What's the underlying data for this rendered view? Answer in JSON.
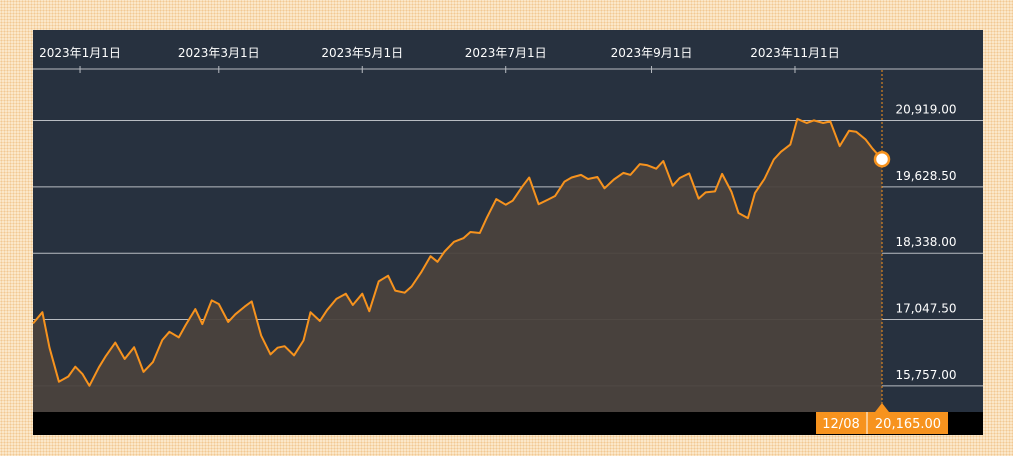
{
  "colors": {
    "background": "#fbe7c9",
    "panel": "#27313f",
    "line": "#f7931e",
    "area": "#4a423d",
    "grid": "#b8bcc2",
    "axis_text": "#ffffff",
    "bottom_bar": "#000000",
    "tag": "#f7931e"
  },
  "chart_data": {
    "type": "area",
    "x_ticks": [
      "2023年1月1日",
      "2023年3月1日",
      "2023年5月1日",
      "2023年7月1日",
      "2023年9月1日",
      "2023年11月1日"
    ],
    "y_ticks": [
      "20,919.00",
      "19,628.50",
      "18,338.00",
      "17,047.50",
      "15,757.00"
    ],
    "y_tick_values": [
      20919.0,
      19628.5,
      18338.0,
      17047.5,
      15757.0
    ],
    "x_range": [
      "2022-12-12",
      "2023-12-08"
    ],
    "ylim": [
      15250,
      21900
    ],
    "grid": "horizontal",
    "last_point": {
      "date_label": "12/08",
      "value_label": "20,165.00",
      "value": 20165.0
    },
    "series": [
      {
        "x": [
          "2022-12-12",
          "2022-12-16",
          "2022-12-19",
          "2022-12-23",
          "2022-12-27",
          "2022-12-30",
          "2023-01-02",
          "2023-01-05",
          "2023-01-09",
          "2023-01-12",
          "2023-01-16",
          "2023-01-20",
          "2023-01-24",
          "2023-01-28",
          "2023-02-01",
          "2023-02-05",
          "2023-02-08",
          "2023-02-12",
          "2023-02-15",
          "2023-02-19",
          "2023-02-22",
          "2023-02-26",
          "2023-03-01",
          "2023-03-05",
          "2023-03-08",
          "2023-03-12",
          "2023-03-15",
          "2023-03-19",
          "2023-03-23",
          "2023-03-26",
          "2023-03-29",
          "2023-04-02",
          "2023-04-06",
          "2023-04-09",
          "2023-04-13",
          "2023-04-16",
          "2023-04-20",
          "2023-04-24",
          "2023-04-27",
          "2023-05-01",
          "2023-05-04",
          "2023-05-08",
          "2023-05-12",
          "2023-05-15",
          "2023-05-19",
          "2023-05-22",
          "2023-05-26",
          "2023-05-30",
          "2023-06-02",
          "2023-06-05",
          "2023-06-09",
          "2023-06-13",
          "2023-06-16",
          "2023-06-20",
          "2023-06-23",
          "2023-06-27",
          "2023-07-01",
          "2023-07-04",
          "2023-07-08",
          "2023-07-11",
          "2023-07-15",
          "2023-07-19",
          "2023-07-22",
          "2023-07-26",
          "2023-07-29",
          "2023-08-02",
          "2023-08-05",
          "2023-08-09",
          "2023-08-12",
          "2023-08-16",
          "2023-08-20",
          "2023-08-23",
          "2023-08-27",
          "2023-08-30",
          "2023-09-03",
          "2023-09-06",
          "2023-09-10",
          "2023-09-13",
          "2023-09-17",
          "2023-09-21",
          "2023-09-24",
          "2023-09-28",
          "2023-10-01",
          "2023-10-05",
          "2023-10-08",
          "2023-10-12",
          "2023-10-15",
          "2023-10-19",
          "2023-10-23",
          "2023-10-26",
          "2023-10-30",
          "2023-11-02",
          "2023-11-06",
          "2023-11-09",
          "2023-11-13",
          "2023-11-16",
          "2023-11-20",
          "2023-11-24",
          "2023-11-27",
          "2023-12-01",
          "2023-12-04",
          "2023-12-08"
        ],
        "values": [
          16970,
          17190,
          16500,
          15840,
          15940,
          16130,
          15990,
          15760,
          16120,
          16340,
          16600,
          16280,
          16510,
          16030,
          16220,
          16650,
          16810,
          16700,
          16950,
          17250,
          16960,
          17420,
          17350,
          17000,
          17150,
          17300,
          17400,
          16740,
          16370,
          16500,
          16530,
          16350,
          16640,
          17190,
          17020,
          17230,
          17450,
          17550,
          17330,
          17550,
          17210,
          17790,
          17900,
          17610,
          17570,
          17690,
          17960,
          18280,
          18170,
          18370,
          18560,
          18630,
          18750,
          18730,
          19030,
          19390,
          19280,
          19360,
          19630,
          19810,
          19290,
          19380,
          19450,
          19730,
          19810,
          19860,
          19780,
          19820,
          19600,
          19770,
          19900,
          19860,
          20070,
          20050,
          19980,
          20130,
          19650,
          19800,
          19890,
          19400,
          19520,
          19540,
          19880,
          19530,
          19120,
          19020,
          19510,
          19780,
          20160,
          20310,
          20450,
          20950,
          20870,
          20920,
          20870,
          20900,
          20420,
          20720,
          20700,
          20550,
          20370,
          20165
        ]
      }
    ]
  }
}
